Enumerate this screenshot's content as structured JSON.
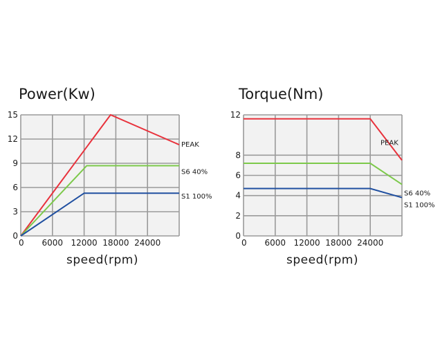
{
  "chart_data": [
    {
      "type": "line",
      "title": "Power(Kw)",
      "xlabel": "speed(rpm)",
      "ylabel": "",
      "xlim": [
        0,
        30000
      ],
      "ylim": [
        0,
        15
      ],
      "xticks": [
        0,
        6000,
        12000,
        18000,
        24000
      ],
      "xtick_labels": [
        "0",
        "6000",
        "12000",
        "18000",
        "24000"
      ],
      "yticks": [
        0,
        3,
        6,
        9,
        12,
        15
      ],
      "ytick_labels": [
        "0",
        "3",
        "6",
        "9",
        "12",
        "15"
      ],
      "grid": true,
      "series": [
        {
          "name": "PEAK",
          "color": "#e8323c",
          "points": [
            [
              0,
              0
            ],
            [
              17000,
              15
            ],
            [
              30000,
              11.3
            ]
          ]
        },
        {
          "name": "S6 40%",
          "color": "#7cc94a",
          "points": [
            [
              0,
              0
            ],
            [
              12500,
              8.7
            ],
            [
              30000,
              8.7
            ]
          ]
        },
        {
          "name": "S1 100%",
          "color": "#1f4fa0",
          "points": [
            [
              0,
              0
            ],
            [
              12000,
              5.3
            ],
            [
              30000,
              5.3
            ]
          ]
        }
      ]
    },
    {
      "type": "line",
      "title": "Torque(Nm)",
      "xlabel": "speed(rpm)",
      "ylabel": "",
      "xlim": [
        0,
        30000
      ],
      "ylim": [
        0,
        12
      ],
      "xticks": [
        0,
        6000,
        12000,
        18000,
        24000
      ],
      "xtick_labels": [
        "0",
        "6000",
        "12000",
        "18000",
        "24000"
      ],
      "yticks": [
        0,
        2,
        4,
        6,
        8,
        12
      ],
      "ytick_labels": [
        "0",
        "2",
        "4",
        "6",
        "8",
        "12"
      ],
      "grid": true,
      "series": [
        {
          "name": "PEAK",
          "color": "#e8323c",
          "points": [
            [
              0,
              11.6
            ],
            [
              24000,
              11.6
            ],
            [
              30000,
              7.5
            ]
          ]
        },
        {
          "name": "S6 40%",
          "color": "#7cc94a",
          "points": [
            [
              0,
              7.2
            ],
            [
              24000,
              7.2
            ],
            [
              30000,
              5.1
            ]
          ]
        },
        {
          "name": "S1 100%",
          "color": "#1f4fa0",
          "points": [
            [
              0,
              4.7
            ],
            [
              24000,
              4.7
            ],
            [
              30000,
              3.8
            ]
          ]
        }
      ]
    }
  ]
}
